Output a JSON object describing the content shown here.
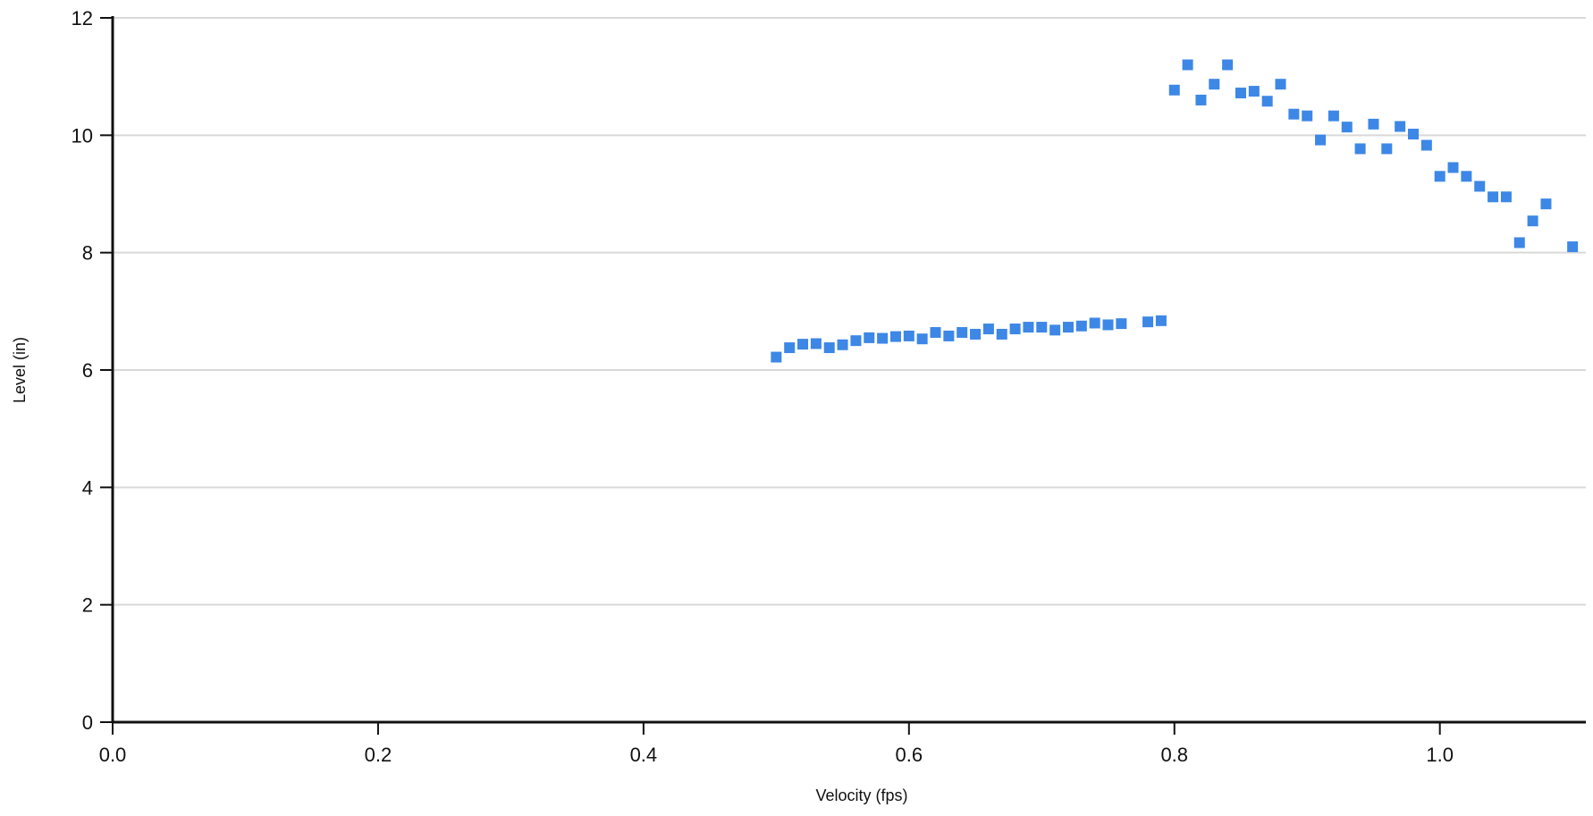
{
  "chart_data": {
    "type": "scatter",
    "title": "",
    "xlabel": "Velocity (fps)",
    "ylabel": "Level (in)",
    "xlim": [
      0.0,
      1.11
    ],
    "ylim": [
      0,
      12
    ],
    "x_ticks": [
      0.0,
      0.2,
      0.4,
      0.6,
      0.8,
      1.0
    ],
    "x_tick_labels": [
      "0.0",
      "0.2",
      "0.4",
      "0.6",
      "0.8",
      "1.0"
    ],
    "y_ticks": [
      0,
      2,
      4,
      6,
      8,
      10,
      12
    ],
    "y_tick_labels": [
      "0",
      "2",
      "4",
      "6",
      "8",
      "10",
      "12"
    ],
    "grid": "horizontal",
    "legend": "none",
    "marker": "square",
    "color": "#3d87e6",
    "series": [
      {
        "points": [
          [
            0.5,
            6.22
          ],
          [
            0.51,
            6.38
          ],
          [
            0.52,
            6.44
          ],
          [
            0.53,
            6.45
          ],
          [
            0.54,
            6.38
          ],
          [
            0.55,
            6.43
          ],
          [
            0.56,
            6.5
          ],
          [
            0.57,
            6.55
          ],
          [
            0.58,
            6.54
          ],
          [
            0.59,
            6.57
          ],
          [
            0.6,
            6.58
          ],
          [
            0.61,
            6.53
          ],
          [
            0.62,
            6.64
          ],
          [
            0.63,
            6.58
          ],
          [
            0.64,
            6.64
          ],
          [
            0.65,
            6.61
          ],
          [
            0.66,
            6.7
          ],
          [
            0.67,
            6.61
          ],
          [
            0.68,
            6.7
          ],
          [
            0.69,
            6.73
          ],
          [
            0.7,
            6.73
          ],
          [
            0.71,
            6.68
          ],
          [
            0.72,
            6.73
          ],
          [
            0.73,
            6.75
          ],
          [
            0.74,
            6.8
          ],
          [
            0.75,
            6.77
          ],
          [
            0.76,
            6.79
          ],
          [
            0.78,
            6.82
          ],
          [
            0.79,
            6.84
          ],
          [
            0.8,
            10.77
          ],
          [
            0.81,
            11.2
          ],
          [
            0.82,
            10.6
          ],
          [
            0.83,
            10.87
          ],
          [
            0.84,
            11.2
          ],
          [
            0.85,
            10.72
          ],
          [
            0.86,
            10.75
          ],
          [
            0.87,
            10.58
          ],
          [
            0.88,
            10.87
          ],
          [
            0.89,
            10.36
          ],
          [
            0.9,
            10.33
          ],
          [
            0.91,
            9.92
          ],
          [
            0.92,
            10.33
          ],
          [
            0.93,
            10.14
          ],
          [
            0.94,
            9.77
          ],
          [
            0.95,
            10.19
          ],
          [
            0.96,
            9.77
          ],
          [
            0.97,
            10.15
          ],
          [
            0.98,
            10.02
          ],
          [
            0.99,
            9.83
          ],
          [
            1.0,
            9.3
          ],
          [
            1.01,
            9.45
          ],
          [
            1.02,
            9.3
          ],
          [
            1.03,
            9.13
          ],
          [
            1.04,
            8.95
          ],
          [
            1.05,
            8.95
          ],
          [
            1.06,
            8.17
          ],
          [
            1.07,
            8.54
          ],
          [
            1.08,
            8.83
          ],
          [
            1.1,
            8.1
          ]
        ]
      }
    ]
  }
}
